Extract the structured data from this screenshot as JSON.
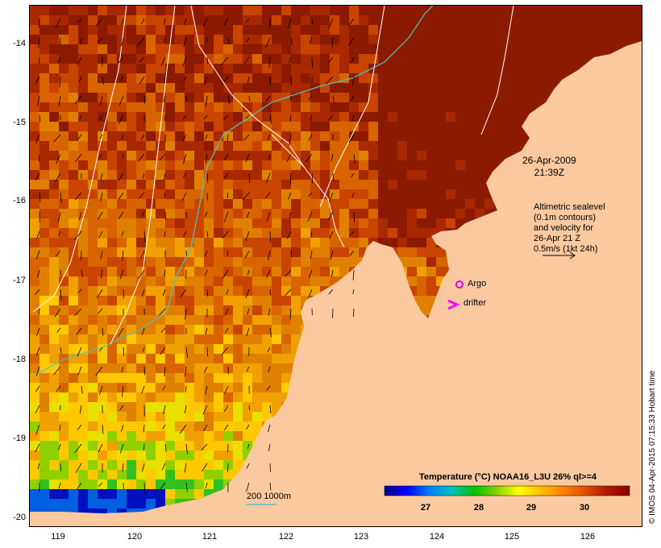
{
  "map": {
    "lat_ticks": [
      "-14",
      "-15",
      "-16",
      "-17",
      "-18",
      "-19",
      "-20"
    ],
    "lon_ticks": [
      "119",
      "120",
      "121",
      "122",
      "123",
      "124",
      "125",
      "126"
    ],
    "timestamp_date": "26-Apr-2009",
    "timestamp_time": "21:39Z",
    "sealevel_note": [
      "Altimetric sealevel",
      "(0.1m contours)",
      "and velocity for",
      "26-Apr 21 Z",
      "0.5m/s (1kt 24h)"
    ],
    "argo_label": "Argo",
    "drifter_label": "drifter",
    "depth_legend": "200  1000m",
    "credit": "© IMOS 04-Apr-2015 07:15:33 Hobart time",
    "colors": {
      "land": "#fbc9a0",
      "contour_200m": "#4fc3c3",
      "contour_1000m": "#ffffff",
      "argo": "#e000e0",
      "drifter": "#ff00ff"
    }
  },
  "colorbar": {
    "title": "Temperature (°C) NOAA16_L3U 26% ql>=4",
    "ticks": [
      "27",
      "28",
      "29",
      "30"
    ],
    "stops": [
      "#00008b",
      "#0000ff",
      "#0080ff",
      "#00c0c0",
      "#00c000",
      "#80d000",
      "#ffff00",
      "#ffc000",
      "#ff8000",
      "#e05000",
      "#b01800",
      "#8b0000"
    ]
  }
}
